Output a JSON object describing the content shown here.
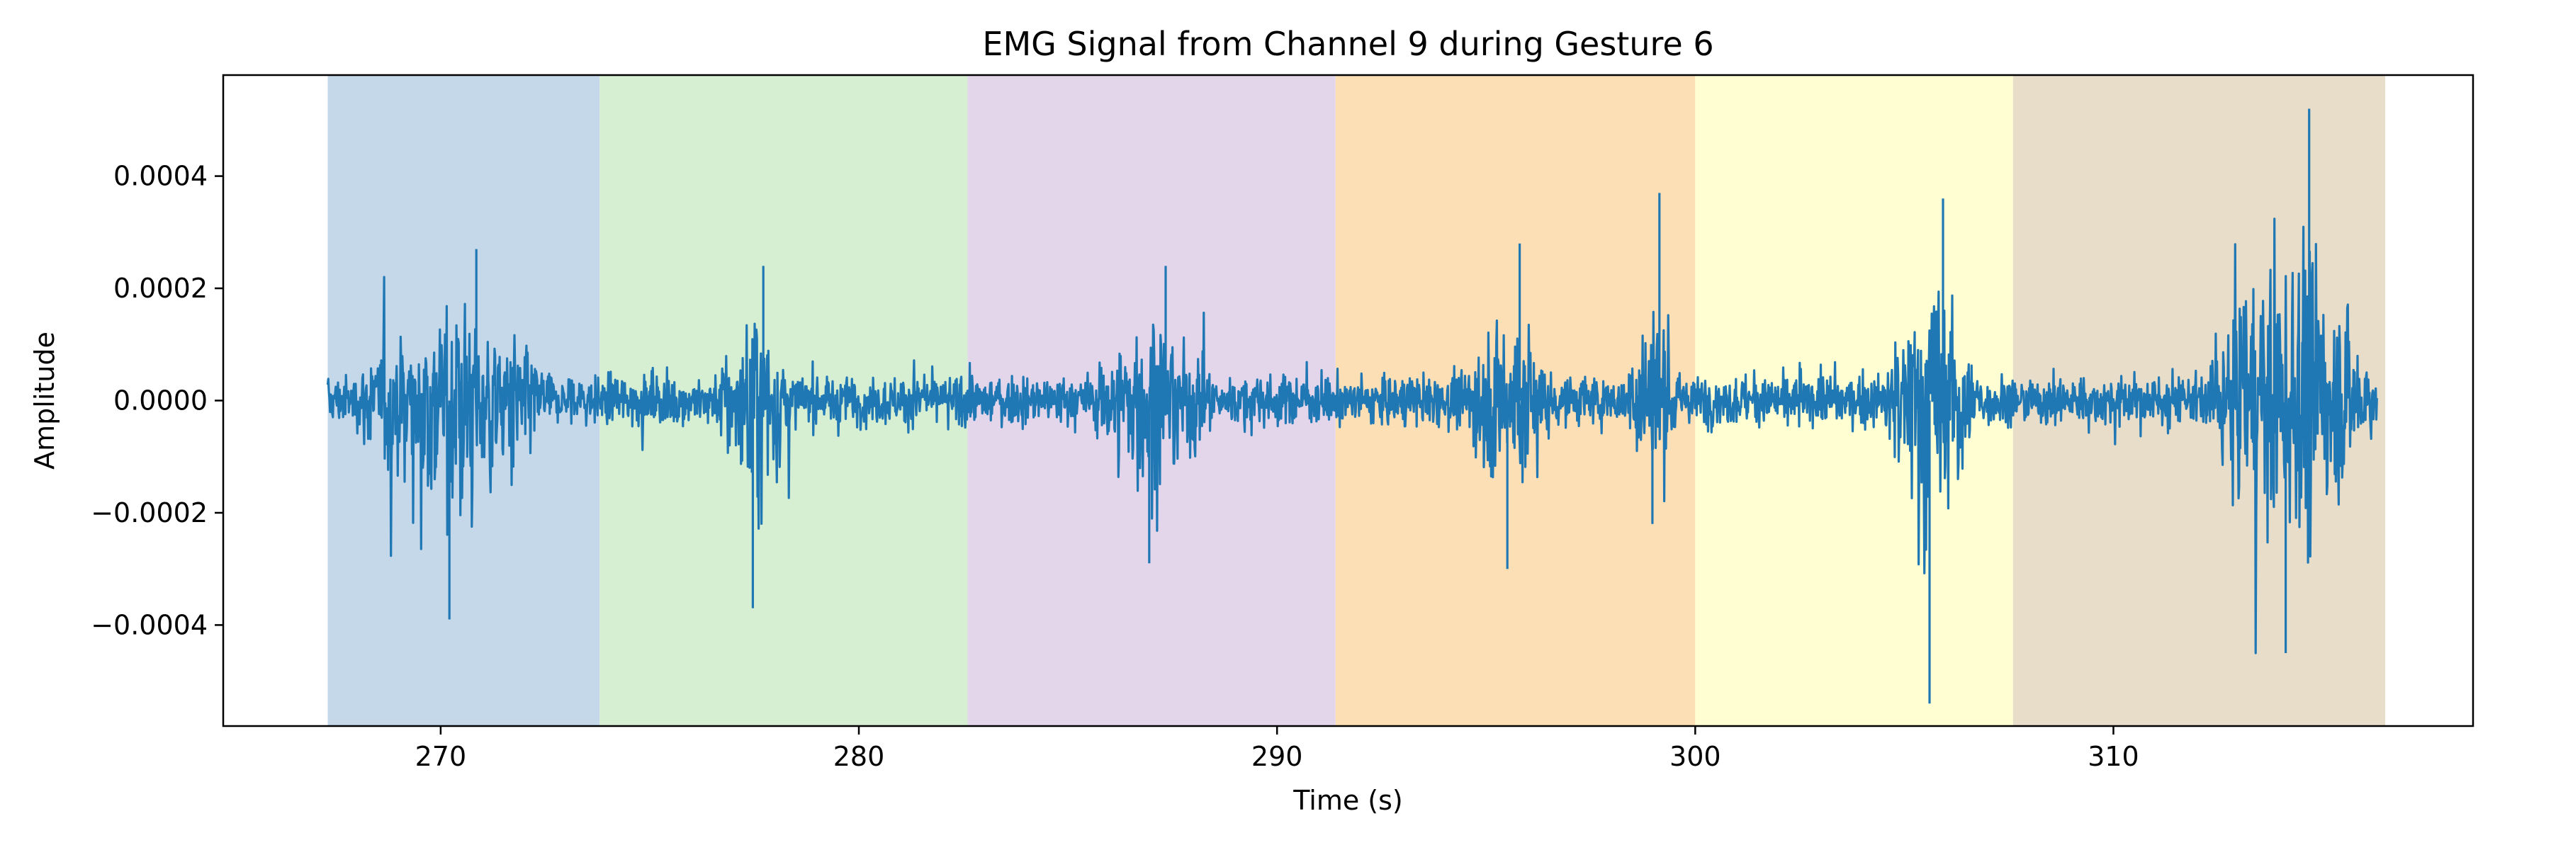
{
  "chart_data": {
    "type": "line",
    "title": "EMG Signal from Channel 9 during Gesture 6",
    "xlabel": "Time (s)",
    "ylabel": "Amplitude",
    "xlim": [
      264.8,
      318.6
    ],
    "ylim": [
      -0.00058,
      0.00058
    ],
    "x_ticks": [
      270,
      280,
      290,
      300,
      310
    ],
    "x_tick_labels": [
      "270",
      "280",
      "290",
      "300",
      "310"
    ],
    "y_ticks": [
      -0.0004,
      -0.0002,
      0.0,
      0.0002,
      0.0004
    ],
    "y_tick_labels": [
      "−0.0004",
      "−0.0002",
      "0.0000",
      "0.0002",
      "0.0004"
    ],
    "grid": false,
    "series": [
      {
        "color": "#1f77b4",
        "x_range": [
          267.3,
          316.3
        ],
        "baseline_amplitude": 4e-05,
        "bursts": [
          {
            "start": 268.0,
            "end": 272.6,
            "peak_max": 0.00027,
            "peak_min": -0.00039
          },
          {
            "start": 276.6,
            "end": 278.4,
            "peak_max": 0.00024,
            "peak_min": -0.00037
          },
          {
            "start": 285.6,
            "end": 288.4,
            "peak_max": 0.00024,
            "peak_min": -0.00029
          },
          {
            "start": 294.5,
            "end": 296.6,
            "peak_max": 0.00028,
            "peak_min": -0.0003
          },
          {
            "start": 298.4,
            "end": 299.6,
            "peak_max": 0.00037,
            "peak_min": -0.00022
          },
          {
            "start": 304.5,
            "end": 306.8,
            "peak_max": 0.00036,
            "peak_min": -0.00054
          },
          {
            "start": 312.2,
            "end": 316.2,
            "peak_max": 0.00052,
            "peak_min": -0.00045
          }
        ]
      }
    ],
    "shaded_regions": [
      {
        "start": 267.3,
        "end": 273.8,
        "color": "#c4d8ea"
      },
      {
        "start": 273.8,
        "end": 282.6,
        "color": "#d6eed1"
      },
      {
        "start": 282.6,
        "end": 291.4,
        "color": "#e4d6ea"
      },
      {
        "start": 291.4,
        "end": 300.0,
        "color": "#fddfb6"
      },
      {
        "start": 300.0,
        "end": 307.6,
        "color": "#fefed2"
      },
      {
        "start": 307.6,
        "end": 316.5,
        "color": "#e8ddc9"
      }
    ]
  }
}
